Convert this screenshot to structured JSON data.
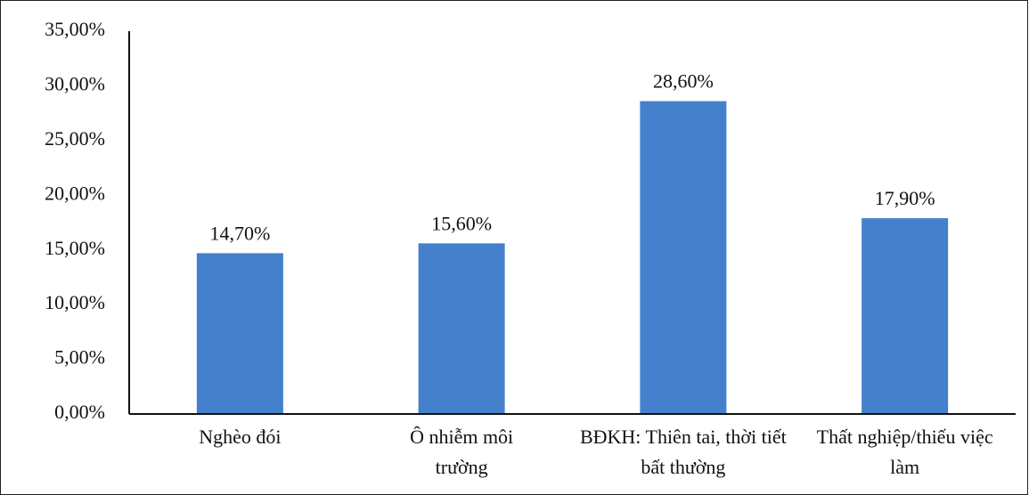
{
  "chart_data": {
    "type": "bar",
    "categories": [
      "Nghèo đói",
      "Ô nhiễm môi trường",
      "BĐKH: Thiên tai, thời tiết bất thường",
      "Thất nghiệp/thiếu việc làm"
    ],
    "values": [
      14.7,
      15.6,
      28.6,
      17.9
    ],
    "value_labels": [
      "14,70%",
      "15,60%",
      "28,60%",
      "17,90%"
    ],
    "color": "#4580cc",
    "ylim": [
      0,
      35
    ],
    "yticks": [
      {
        "value": 0,
        "label": "0,00%"
      },
      {
        "value": 5,
        "label": "5,00%"
      },
      {
        "value": 10,
        "label": "10,00%"
      },
      {
        "value": 15,
        "label": "15,00%"
      },
      {
        "value": 20,
        "label": "20,00%"
      },
      {
        "value": 25,
        "label": "25,00%"
      },
      {
        "value": 30,
        "label": "30,00%"
      },
      {
        "value": 35,
        "label": "35,00%"
      }
    ],
    "grid": false
  }
}
